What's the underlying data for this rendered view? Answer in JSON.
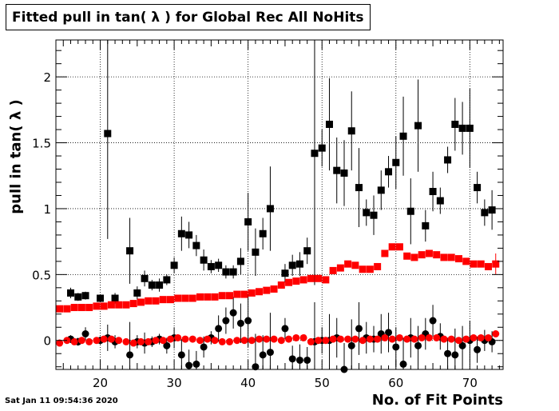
{
  "title": "Fitted pull in tan( λ ) for Global Rec All NoHits",
  "timestamp": "Sat Jan 11 09:54:36 2020",
  "chart_data": {
    "type": "scatter",
    "title": "Fitted pull in tan( λ ) for Global Rec All NoHits",
    "xlabel": "No. of Fit Points",
    "ylabel": "pull in tan( λ )",
    "xlim": [
      14,
      74.5
    ],
    "ylim": [
      -0.22,
      2.28
    ],
    "xticks": [
      20,
      30,
      40,
      50,
      60,
      70
    ],
    "yticks": [
      0,
      0.5,
      1,
      1.5,
      2
    ],
    "ytick_labels": [
      "0",
      "0.5",
      "1",
      "1.5",
      "2"
    ],
    "grid": true,
    "series": [
      {
        "marker": "square",
        "color": "#000000",
        "points": [
          [
            16,
            0.36,
            0.04
          ],
          [
            17,
            0.33,
            0.03
          ],
          [
            18,
            0.34,
            0.03
          ],
          [
            20,
            0.32,
            0.03
          ],
          [
            21,
            1.57,
            0.8
          ],
          [
            22,
            0.32,
            0.04
          ],
          [
            24,
            0.68,
            0.25
          ],
          [
            25,
            0.36,
            0.05
          ],
          [
            26,
            0.47,
            0.06
          ],
          [
            27,
            0.42,
            0.04
          ],
          [
            28,
            0.42,
            0.05
          ],
          [
            29,
            0.46,
            0.04
          ],
          [
            30,
            0.57,
            0.06
          ],
          [
            31,
            0.81,
            0.13
          ],
          [
            32,
            0.8,
            0.1
          ],
          [
            33,
            0.72,
            0.08
          ],
          [
            34,
            0.61,
            0.08
          ],
          [
            35,
            0.56,
            0.05
          ],
          [
            36,
            0.57,
            0.05
          ],
          [
            37,
            0.52,
            0.05
          ],
          [
            38,
            0.52,
            0.05
          ],
          [
            39,
            0.6,
            0.1
          ],
          [
            40,
            0.9,
            0.22
          ],
          [
            41,
            0.67,
            0.18
          ],
          [
            42,
            0.81,
            0.12
          ],
          [
            43,
            1.0,
            0.32
          ],
          [
            45,
            0.51,
            0.07
          ],
          [
            46,
            0.57,
            0.08
          ],
          [
            47,
            0.58,
            0.09
          ],
          [
            48,
            0.68,
            0.1
          ],
          [
            49,
            1.42,
            1.0
          ],
          [
            50,
            1.46,
            0.14
          ],
          [
            51,
            1.64,
            0.35
          ],
          [
            52,
            1.29,
            0.25
          ],
          [
            53,
            1.27,
            0.25
          ],
          [
            54,
            1.59,
            0.3
          ],
          [
            55,
            1.16,
            0.3
          ],
          [
            56,
            0.97,
            0.1
          ],
          [
            57,
            0.95,
            0.15
          ],
          [
            58,
            1.14,
            0.15
          ],
          [
            59,
            1.28,
            0.12
          ],
          [
            60,
            1.35,
            0.2
          ],
          [
            61,
            1.55,
            0.3
          ],
          [
            62,
            0.98,
            0.25
          ],
          [
            63,
            1.63,
            0.35
          ],
          [
            64,
            0.87,
            0.12
          ],
          [
            65,
            1.13,
            0.15
          ],
          [
            66,
            1.06,
            0.1
          ],
          [
            67,
            1.37,
            0.1
          ],
          [
            68,
            1.64,
            0.2
          ],
          [
            69,
            1.61,
            0.2
          ],
          [
            70,
            1.61,
            0.3
          ],
          [
            71,
            1.16,
            0.12
          ],
          [
            72,
            0.97,
            0.1
          ],
          [
            73,
            0.99,
            0.15
          ]
        ]
      },
      {
        "marker": "square",
        "color": "#ff0000",
        "points": [
          [
            14.5,
            0.24,
            0
          ],
          [
            15.5,
            0.24,
            0
          ],
          [
            16.5,
            0.25,
            0
          ],
          [
            17.5,
            0.25,
            0
          ],
          [
            18.5,
            0.25,
            0
          ],
          [
            19.5,
            0.26,
            0
          ],
          [
            20.5,
            0.26,
            0
          ],
          [
            21.5,
            0.27,
            0
          ],
          [
            22.5,
            0.27,
            0
          ],
          [
            23.5,
            0.27,
            0
          ],
          [
            24.5,
            0.28,
            0
          ],
          [
            25.5,
            0.29,
            0
          ],
          [
            26.5,
            0.3,
            0
          ],
          [
            27.5,
            0.3,
            0
          ],
          [
            28.5,
            0.31,
            0
          ],
          [
            29.5,
            0.31,
            0
          ],
          [
            30.5,
            0.32,
            0
          ],
          [
            31.5,
            0.32,
            0
          ],
          [
            32.5,
            0.32,
            0
          ],
          [
            33.5,
            0.33,
            0
          ],
          [
            34.5,
            0.33,
            0
          ],
          [
            35.5,
            0.33,
            0
          ],
          [
            36.5,
            0.34,
            0
          ],
          [
            37.5,
            0.34,
            0
          ],
          [
            38.5,
            0.35,
            0
          ],
          [
            39.5,
            0.35,
            0
          ],
          [
            40.5,
            0.36,
            0
          ],
          [
            41.5,
            0.37,
            0
          ],
          [
            42.5,
            0.38,
            0
          ],
          [
            43.5,
            0.39,
            0
          ],
          [
            44.5,
            0.42,
            0
          ],
          [
            45.5,
            0.44,
            0
          ],
          [
            46.5,
            0.45,
            0
          ],
          [
            47.5,
            0.46,
            0
          ],
          [
            48.5,
            0.47,
            0
          ],
          [
            49.5,
            0.47,
            0
          ],
          [
            50.5,
            0.46,
            0
          ],
          [
            51.5,
            0.53,
            0
          ],
          [
            52.5,
            0.55,
            0
          ],
          [
            53.5,
            0.58,
            0
          ],
          [
            54.5,
            0.57,
            0
          ],
          [
            55.5,
            0.54,
            0
          ],
          [
            56.5,
            0.54,
            0
          ],
          [
            57.5,
            0.56,
            0
          ],
          [
            58.5,
            0.66,
            0
          ],
          [
            59.5,
            0.71,
            0
          ],
          [
            60.5,
            0.71,
            0
          ],
          [
            61.5,
            0.64,
            0
          ],
          [
            62.5,
            0.63,
            0
          ],
          [
            63.5,
            0.65,
            0
          ],
          [
            64.5,
            0.66,
            0
          ],
          [
            65.5,
            0.65,
            0
          ],
          [
            66.5,
            0.63,
            0
          ],
          [
            67.5,
            0.63,
            0
          ],
          [
            68.5,
            0.62,
            0
          ],
          [
            69.5,
            0.6,
            0
          ],
          [
            70.5,
            0.58,
            0
          ],
          [
            71.5,
            0.58,
            0
          ],
          [
            72.5,
            0.56,
            0
          ],
          [
            73.5,
            0.58,
            0.08
          ]
        ]
      },
      {
        "marker": "circle",
        "color": "#000000",
        "points": [
          [
            16,
            0.01,
            0.03
          ],
          [
            17,
            -0.01,
            0.03
          ],
          [
            18,
            0.05,
            0.05
          ],
          [
            20,
            0.0,
            0.03
          ],
          [
            21,
            0.02,
            0.1
          ],
          [
            22,
            -0.01,
            0.05
          ],
          [
            24,
            -0.11,
            0.25
          ],
          [
            25,
            -0.01,
            0.05
          ],
          [
            26,
            -0.02,
            0.08
          ],
          [
            27,
            -0.01,
            0.04
          ],
          [
            28,
            0.01,
            0.04
          ],
          [
            29,
            -0.04,
            0.06
          ],
          [
            30,
            0.02,
            0.08
          ],
          [
            31,
            -0.11,
            0.12
          ],
          [
            32,
            -0.19,
            0.12
          ],
          [
            33,
            -0.18,
            0.1
          ],
          [
            34,
            -0.05,
            0.08
          ],
          [
            35,
            0.02,
            0.05
          ],
          [
            36,
            0.09,
            0.1
          ],
          [
            37,
            0.15,
            0.1
          ],
          [
            38,
            0.21,
            0.12
          ],
          [
            39,
            0.13,
            0.15
          ],
          [
            40,
            0.15,
            0.2
          ],
          [
            41,
            -0.2,
            0.25
          ],
          [
            42,
            -0.11,
            0.15
          ],
          [
            43,
            -0.09,
            0.3
          ],
          [
            45,
            0.09,
            0.08
          ],
          [
            46,
            -0.14,
            0.1
          ],
          [
            47,
            -0.15,
            0.12
          ],
          [
            48,
            -0.15,
            0.1
          ],
          [
            49,
            -0.01,
            0.3
          ],
          [
            50,
            0.0,
            0.1
          ],
          [
            51,
            0.0,
            0.2
          ],
          [
            52,
            0.02,
            0.15
          ],
          [
            53,
            -0.22,
            0.2
          ],
          [
            54,
            -0.04,
            0.2
          ],
          [
            55,
            0.09,
            0.2
          ],
          [
            56,
            0.02,
            0.12
          ],
          [
            57,
            0.01,
            0.1
          ],
          [
            58,
            0.05,
            0.15
          ],
          [
            59,
            0.06,
            0.15
          ],
          [
            60,
            -0.05,
            0.15
          ],
          [
            61,
            -0.18,
            0.2
          ],
          [
            62,
            0.02,
            0.15
          ],
          [
            63,
            -0.04,
            0.15
          ],
          [
            64,
            0.05,
            0.12
          ],
          [
            65,
            0.15,
            0.12
          ],
          [
            66,
            0.03,
            0.1
          ],
          [
            67,
            -0.1,
            0.12
          ],
          [
            68,
            -0.11,
            0.2
          ],
          [
            69,
            -0.04,
            0.15
          ],
          [
            70,
            0.0,
            0.15
          ],
          [
            71,
            -0.07,
            0.1
          ],
          [
            72,
            0.0,
            0.08
          ],
          [
            73,
            -0.01,
            0.08
          ]
        ]
      },
      {
        "marker": "circle",
        "color": "#ff0000",
        "points": [
          [
            14.5,
            -0.02,
            0
          ],
          [
            15.5,
            0.0,
            0
          ],
          [
            16.5,
            -0.01,
            0
          ],
          [
            17.5,
            0.0,
            0
          ],
          [
            18.5,
            -0.01,
            0
          ],
          [
            19.5,
            0.0,
            0
          ],
          [
            20.5,
            0.01,
            0
          ],
          [
            21.5,
            0.01,
            0
          ],
          [
            22.5,
            0.0,
            0
          ],
          [
            23.5,
            -0.01,
            0
          ],
          [
            24.5,
            -0.02,
            0
          ],
          [
            25.5,
            -0.01,
            0
          ],
          [
            26.5,
            -0.01,
            0
          ],
          [
            27.5,
            0.0,
            0
          ],
          [
            28.5,
            0.0,
            0
          ],
          [
            29.5,
            0.01,
            0
          ],
          [
            30.5,
            0.02,
            0
          ],
          [
            31.5,
            0.01,
            0
          ],
          [
            32.5,
            0.01,
            0
          ],
          [
            33.5,
            0.0,
            0
          ],
          [
            34.5,
            0.01,
            0
          ],
          [
            35.5,
            0.0,
            0
          ],
          [
            36.5,
            -0.01,
            0
          ],
          [
            37.5,
            -0.01,
            0
          ],
          [
            38.5,
            0.0,
            0
          ],
          [
            39.5,
            0.0,
            0
          ],
          [
            40.5,
            0.0,
            0
          ],
          [
            41.5,
            0.01,
            0
          ],
          [
            42.5,
            0.01,
            0
          ],
          [
            43.5,
            0.01,
            0
          ],
          [
            44.5,
            0.0,
            0
          ],
          [
            45.5,
            0.01,
            0
          ],
          [
            46.5,
            0.02,
            0
          ],
          [
            47.5,
            0.02,
            0
          ],
          [
            48.5,
            -0.01,
            0
          ],
          [
            49.5,
            0.0,
            0
          ],
          [
            50.5,
            0.0,
            0
          ],
          [
            51.5,
            0.01,
            0
          ],
          [
            52.5,
            0.01,
            0
          ],
          [
            53.5,
            0.01,
            0
          ],
          [
            54.5,
            0.01,
            0
          ],
          [
            55.5,
            0.0,
            0
          ],
          [
            56.5,
            0.01,
            0
          ],
          [
            57.5,
            0.01,
            0
          ],
          [
            58.5,
            0.02,
            0
          ],
          [
            59.5,
            0.01,
            0
          ],
          [
            60.5,
            0.02,
            0
          ],
          [
            61.5,
            0.01,
            0
          ],
          [
            62.5,
            0.01,
            0
          ],
          [
            63.5,
            0.02,
            0
          ],
          [
            64.5,
            0.02,
            0
          ],
          [
            65.5,
            0.02,
            0
          ],
          [
            66.5,
            0.01,
            0
          ],
          [
            67.5,
            0.01,
            0
          ],
          [
            68.5,
            0.0,
            0
          ],
          [
            69.5,
            0.01,
            0
          ],
          [
            70.5,
            0.02,
            0
          ],
          [
            71.5,
            0.02,
            0
          ],
          [
            72.5,
            0.02,
            0
          ],
          [
            73.5,
            0.05,
            0
          ]
        ]
      }
    ]
  }
}
